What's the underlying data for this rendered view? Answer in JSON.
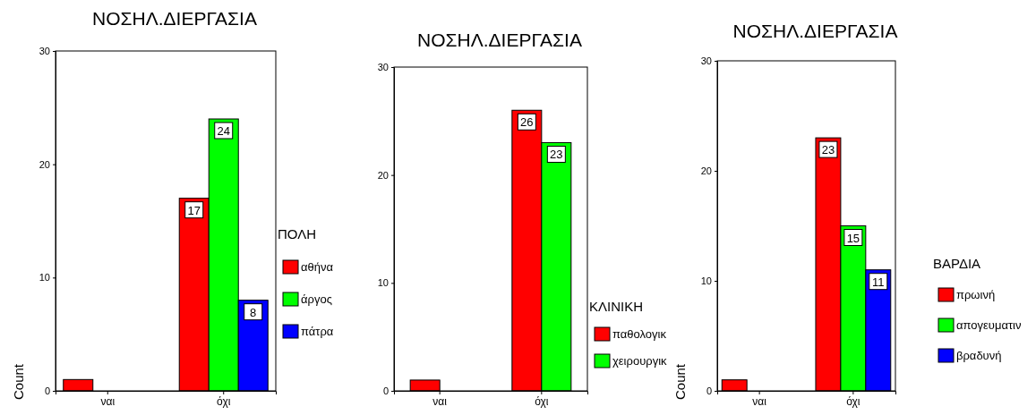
{
  "chart_data": [
    {
      "type": "bar",
      "title": "ΝΟΣΗΛ.ΔΙΕΡΓΑΣΙΑ",
      "ylabel": "Count",
      "categories": [
        "ναι",
        "όχι"
      ],
      "ylim": [
        0,
        30
      ],
      "yticks": [
        0,
        10,
        20,
        30
      ],
      "legend": "right",
      "legend_title": "ΠΟΛΗ",
      "series": [
        {
          "name": "αθήνα",
          "color": "#ff0000",
          "values": [
            1,
            17
          ],
          "value_labels": [
            null,
            "17"
          ]
        },
        {
          "name": "άργος",
          "color": "#00ff00",
          "values": [
            null,
            24
          ],
          "value_labels": [
            null,
            "24"
          ]
        },
        {
          "name": "πάτρα",
          "color": "#0000ff",
          "values": [
            null,
            8
          ],
          "value_labels": [
            null,
            "8"
          ]
        }
      ]
    },
    {
      "type": "bar",
      "title": "ΝΟΣΗΛ.ΔΙΕΡΓΑΣΙΑ",
      "categories": [
        "ναι",
        "όχι"
      ],
      "ylim": [
        0,
        30
      ],
      "yticks": [
        0,
        10,
        20,
        30
      ],
      "legend": "right",
      "legend_title": "ΚΛΙΝΙΚΗ",
      "series": [
        {
          "name": "παθολογικ",
          "color": "#ff0000",
          "values": [
            1,
            26
          ],
          "value_labels": [
            null,
            "26"
          ]
        },
        {
          "name": "χειρουργικ",
          "color": "#00ff00",
          "values": [
            null,
            23
          ],
          "value_labels": [
            null,
            "23"
          ]
        }
      ]
    },
    {
      "type": "bar",
      "title": "ΝΟΣΗΛ.ΔΙΕΡΓΑΣΙΑ",
      "ylabel": "Count",
      "categories": [
        "ναι",
        "όχι"
      ],
      "ylim": [
        0,
        30
      ],
      "yticks": [
        0,
        10,
        20,
        30
      ],
      "legend": "right",
      "legend_title": "ΒΑΡΔΙΑ",
      "series": [
        {
          "name": "πρωινή",
          "color": "#ff0000",
          "values": [
            1,
            23
          ],
          "value_labels": [
            null,
            "23"
          ]
        },
        {
          "name": "απογευματιν",
          "color": "#00ff00",
          "values": [
            null,
            15
          ],
          "value_labels": [
            null,
            "15"
          ]
        },
        {
          "name": "βραδυνή",
          "color": "#0000ff",
          "values": [
            null,
            11
          ],
          "value_labels": [
            null,
            "11"
          ]
        }
      ]
    }
  ]
}
